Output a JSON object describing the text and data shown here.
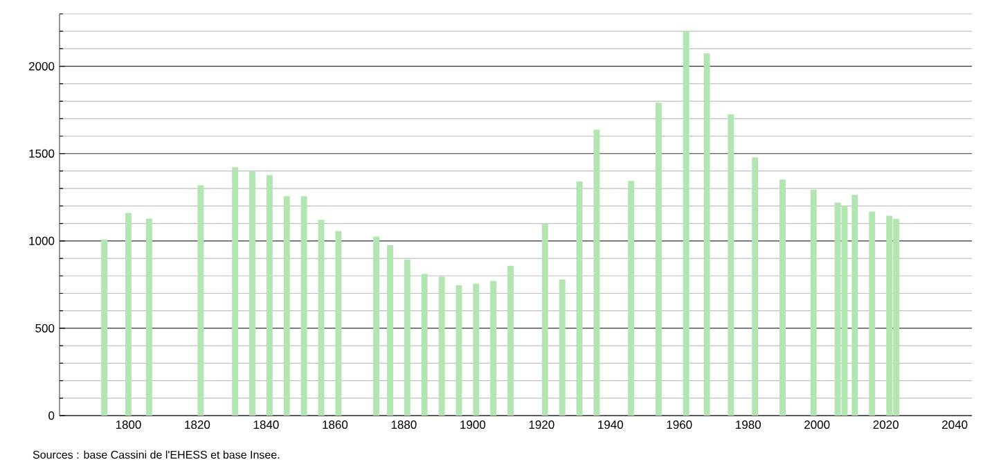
{
  "chart_data": {
    "type": "bar",
    "x": [
      1793,
      1800,
      1806,
      1821,
      1831,
      1836,
      1841,
      1846,
      1851,
      1856,
      1861,
      1872,
      1876,
      1881,
      1886,
      1891,
      1896,
      1901,
      1906,
      1911,
      1921,
      1926,
      1931,
      1936,
      1946,
      1954,
      1962,
      1968,
      1975,
      1982,
      1990,
      1999,
      2006,
      2008,
      2011,
      2016,
      2021,
      2023
    ],
    "values": [
      1007,
      1160,
      1128,
      1319,
      1423,
      1399,
      1377,
      1256,
      1256,
      1121,
      1057,
      1025,
      977,
      893,
      811,
      795,
      747,
      755,
      771,
      858,
      1102,
      779,
      1340,
      1637,
      1343,
      1791,
      2199,
      2074,
      1725,
      1478,
      1351,
      1293,
      1219,
      1200,
      1264,
      1168,
      1144,
      1126
    ],
    "color": "#b2e5b2",
    "xlim": [
      1780,
      2045
    ],
    "ylim": [
      0,
      2300
    ],
    "xticks": [
      1800,
      1820,
      1840,
      1860,
      1880,
      1900,
      1920,
      1940,
      1960,
      1980,
      2000,
      2020,
      2040
    ],
    "yticks": [
      0,
      {
        "value": 100,
        "label": null
      },
      {
        "value": 200,
        "label": null
      },
      {
        "value": 300,
        "label": null
      },
      {
        "value": 400,
        "label": null
      },
      500,
      {
        "value": 600,
        "label": null
      },
      {
        "value": 700,
        "label": null
      },
      {
        "value": 800,
        "label": null
      },
      {
        "value": 900,
        "label": null
      },
      1000,
      {
        "value": 1100,
        "label": null
      },
      {
        "value": 1200,
        "label": null
      },
      {
        "value": 1300,
        "label": null
      },
      {
        "value": 1400,
        "label": null
      },
      1500,
      {
        "value": 1600,
        "label": null
      },
      {
        "value": 1700,
        "label": null
      },
      {
        "value": 1800,
        "label": null
      },
      {
        "value": 1900,
        "label": null
      },
      2000,
      {
        "value": 2100,
        "label": null
      },
      {
        "value": 2200,
        "label": null
      },
      {
        "value": 2300,
        "label": null
      }
    ],
    "grid": "y",
    "annotations": [
      "Sources : base Cassini de l'EHESS et base Insee."
    ]
  }
}
